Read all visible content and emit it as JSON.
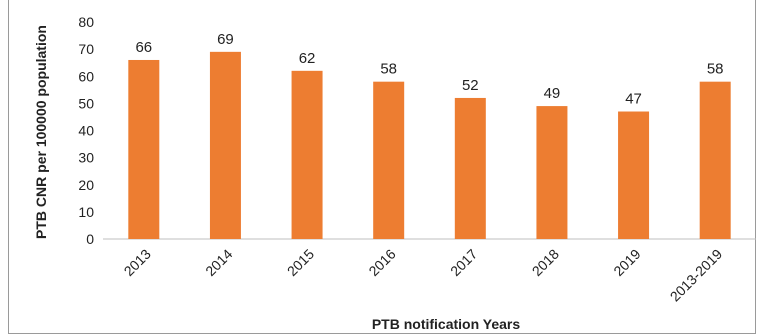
{
  "chart_data": {
    "type": "bar",
    "title": "",
    "xlabel": "PTB notification Years",
    "ylabel": "PTB CNR per 100000 population",
    "categories": [
      "2013",
      "2014",
      "2015",
      "2016",
      "2017",
      "2018",
      "2019",
      "2013-2019"
    ],
    "values": [
      66,
      69,
      62,
      58,
      52,
      49,
      47,
      58
    ],
    "ylim": [
      0,
      80
    ],
    "yticks": [
      0,
      10,
      20,
      30,
      40,
      50,
      60,
      70,
      80
    ],
    "grid": false,
    "legend": "none",
    "bar_color": "#ED7D31"
  }
}
